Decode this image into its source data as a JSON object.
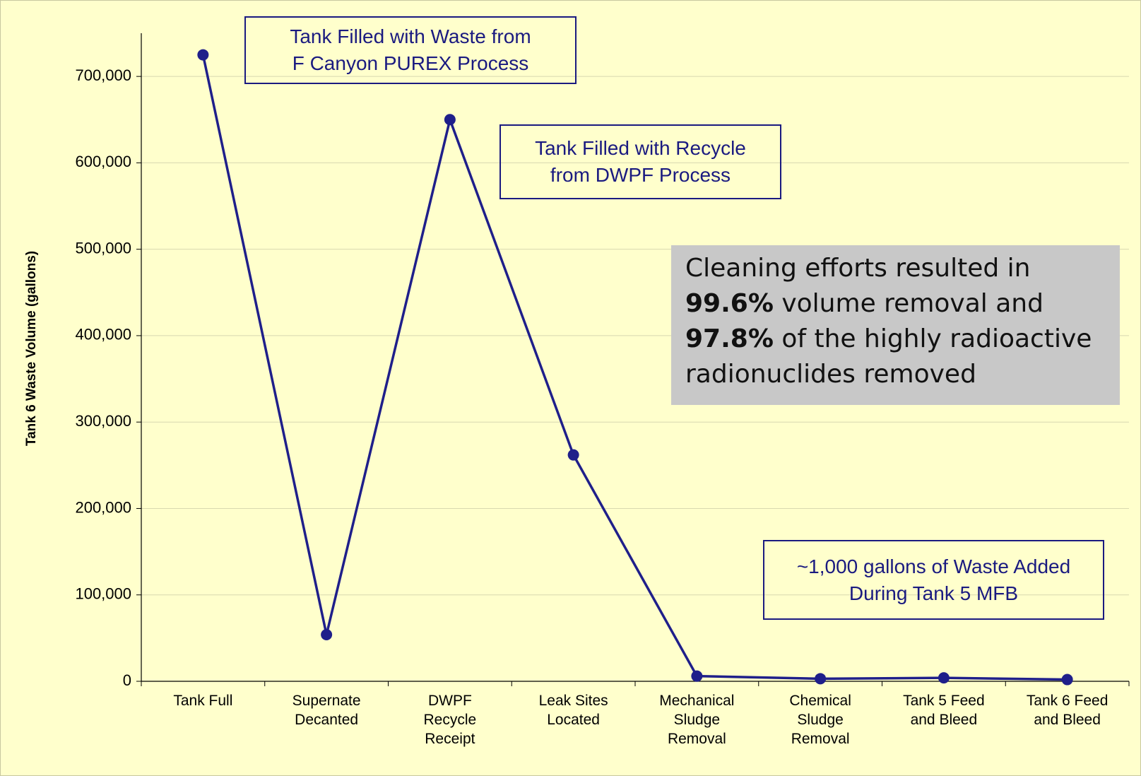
{
  "chart_data": {
    "type": "line",
    "y_label": "Tank 6 Waste Volume (gallons)",
    "categories": [
      "Tank Full",
      "Supernate\nDecanted",
      "DWPF\nRecycle\nReceipt",
      "Leak Sites\nLocated",
      "Mechanical\nSludge\nRemoval",
      "Chemical\nSludge\nRemoval",
      "Tank 5 Feed\nand Bleed",
      "Tank 6 Feed\nand Bleed"
    ],
    "series": [
      {
        "name": "Tank 6 Waste Volume",
        "color": "#1f1f8a",
        "values": [
          725000,
          54000,
          650000,
          262000,
          6000,
          3000,
          4000,
          2000
        ]
      }
    ],
    "ylim": [
      0,
      750000
    ],
    "yticks": [
      0,
      {
        "value": 100000,
        "label": "100,000"
      },
      {
        "value": 200000,
        "label": "200,000"
      },
      {
        "value": 300000,
        "label": "300,000"
      },
      {
        "value": 400000,
        "label": "400,000"
      },
      {
        "value": 500000,
        "label": "500,000"
      },
      {
        "value": 600000,
        "label": "600,000"
      },
      {
        "value": 700000,
        "label": "700,000"
      }
    ],
    "grid": true,
    "annotations": [
      "Tank Filled with Waste from\nF Canyon PUREX Process",
      "Tank Filled with Recycle\nfrom DWPF Process",
      "~1,000 gallons of Waste Added\nDuring Tank 5 MFB"
    ],
    "callout": [
      "Cleaning efforts resulted in",
      "99.6%",
      " volume removal and",
      "97.8%",
      " of the highly radioactive",
      "radionuclides removed"
    ]
  }
}
